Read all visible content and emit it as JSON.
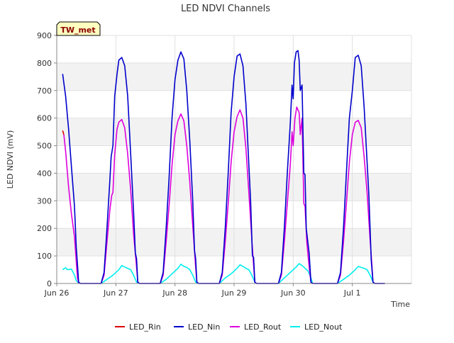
{
  "chart_data": {
    "type": "line",
    "title": "LED NDVI Channels",
    "xlabel": "Time",
    "ylabel": "LED NDVI (mV)",
    "site_tag": "TW_met",
    "ylim": [
      0,
      900
    ],
    "yticks": [
      0,
      100,
      200,
      300,
      400,
      500,
      600,
      700,
      800,
      900
    ],
    "xlim": [
      0,
      6
    ],
    "xticks": [
      {
        "value": 0,
        "label": "Jun 26"
      },
      {
        "value": 1,
        "label": "Jun 27"
      },
      {
        "value": 2,
        "label": "Jun 28"
      },
      {
        "value": 3,
        "label": "Jun 29"
      },
      {
        "value": 4,
        "label": "Jun 30"
      },
      {
        "value": 5,
        "label": "Jul 1"
      }
    ],
    "grid": true,
    "legend_position": "bottom",
    "series": [
      {
        "name": "LED_Rin",
        "color": "#dd0000",
        "points": [
          [
            0.1,
            555
          ],
          [
            0.12,
            540
          ]
        ]
      },
      {
        "name": "LED_Nin",
        "color": "#0000cc",
        "points": [
          [
            0.1,
            760
          ],
          [
            0.15,
            680
          ],
          [
            0.2,
            560
          ],
          [
            0.25,
            420
          ],
          [
            0.3,
            280
          ],
          [
            0.33,
            130
          ],
          [
            0.35,
            70
          ],
          [
            0.37,
            5
          ],
          [
            0.4,
            0
          ],
          [
            0.75,
            0
          ],
          [
            0.8,
            40
          ],
          [
            0.85,
            200
          ],
          [
            0.9,
            380
          ],
          [
            0.92,
            460
          ],
          [
            0.95,
            500
          ],
          [
            0.98,
            680
          ],
          [
            1.02,
            760
          ],
          [
            1.05,
            810
          ],
          [
            1.1,
            820
          ],
          [
            1.15,
            790
          ],
          [
            1.2,
            680
          ],
          [
            1.25,
            470
          ],
          [
            1.3,
            260
          ],
          [
            1.33,
            110
          ],
          [
            1.35,
            90
          ],
          [
            1.37,
            5
          ],
          [
            1.4,
            0
          ],
          [
            1.75,
            0
          ],
          [
            1.8,
            40
          ],
          [
            1.85,
            200
          ],
          [
            1.9,
            380
          ],
          [
            1.95,
            600
          ],
          [
            2.0,
            740
          ],
          [
            2.05,
            810
          ],
          [
            2.1,
            840
          ],
          [
            2.15,
            815
          ],
          [
            2.2,
            700
          ],
          [
            2.25,
            520
          ],
          [
            2.3,
            300
          ],
          [
            2.33,
            120
          ],
          [
            2.35,
            90
          ],
          [
            2.37,
            5
          ],
          [
            2.4,
            0
          ],
          [
            2.75,
            0
          ],
          [
            2.8,
            40
          ],
          [
            2.85,
            200
          ],
          [
            2.9,
            400
          ],
          [
            2.95,
            620
          ],
          [
            3.0,
            750
          ],
          [
            3.05,
            825
          ],
          [
            3.1,
            833
          ],
          [
            3.15,
            790
          ],
          [
            3.2,
            650
          ],
          [
            3.25,
            430
          ],
          [
            3.28,
            300
          ],
          [
            3.31,
            100
          ],
          [
            3.33,
            95
          ],
          [
            3.35,
            5
          ],
          [
            3.38,
            0
          ],
          [
            3.75,
            0
          ],
          [
            3.8,
            40
          ],
          [
            3.85,
            200
          ],
          [
            3.9,
            400
          ],
          [
            3.95,
            580
          ],
          [
            3.98,
            720
          ],
          [
            4.0,
            670
          ],
          [
            4.02,
            800
          ],
          [
            4.05,
            840
          ],
          [
            4.08,
            845
          ],
          [
            4.1,
            810
          ],
          [
            4.12,
            700
          ],
          [
            4.15,
            720
          ],
          [
            4.18,
            400
          ],
          [
            4.2,
            395
          ],
          [
            4.22,
            200
          ],
          [
            4.27,
            110
          ],
          [
            4.3,
            5
          ],
          [
            4.33,
            0
          ],
          [
            4.75,
            0
          ],
          [
            4.8,
            40
          ],
          [
            4.85,
            200
          ],
          [
            4.9,
            400
          ],
          [
            4.95,
            600
          ],
          [
            5.0,
            700
          ],
          [
            5.05,
            820
          ],
          [
            5.1,
            828
          ],
          [
            5.15,
            790
          ],
          [
            5.2,
            640
          ],
          [
            5.25,
            440
          ],
          [
            5.28,
            320
          ],
          [
            5.3,
            200
          ],
          [
            5.32,
            85
          ],
          [
            5.35,
            5
          ],
          [
            5.38,
            0
          ],
          [
            5.55,
            0
          ]
        ]
      },
      {
        "name": "LED_Rout",
        "color": "#dd00dd",
        "points": [
          [
            0.12,
            540
          ],
          [
            0.15,
            480
          ],
          [
            0.2,
            350
          ],
          [
            0.25,
            250
          ],
          [
            0.3,
            170
          ],
          [
            0.33,
            80
          ],
          [
            0.35,
            20
          ],
          [
            0.37,
            2
          ],
          [
            0.4,
            0
          ],
          [
            0.75,
            0
          ],
          [
            0.8,
            30
          ],
          [
            0.85,
            150
          ],
          [
            0.9,
            270
          ],
          [
            0.93,
            320
          ],
          [
            0.95,
            330
          ],
          [
            0.98,
            470
          ],
          [
            1.02,
            560
          ],
          [
            1.05,
            585
          ],
          [
            1.1,
            595
          ],
          [
            1.15,
            565
          ],
          [
            1.2,
            470
          ],
          [
            1.25,
            340
          ],
          [
            1.3,
            180
          ],
          [
            1.35,
            60
          ],
          [
            1.37,
            5
          ],
          [
            1.4,
            0
          ],
          [
            1.75,
            0
          ],
          [
            1.8,
            30
          ],
          [
            1.85,
            150
          ],
          [
            1.9,
            280
          ],
          [
            1.95,
            430
          ],
          [
            2.0,
            540
          ],
          [
            2.05,
            590
          ],
          [
            2.1,
            615
          ],
          [
            2.15,
            590
          ],
          [
            2.2,
            500
          ],
          [
            2.25,
            370
          ],
          [
            2.3,
            210
          ],
          [
            2.35,
            60
          ],
          [
            2.37,
            5
          ],
          [
            2.4,
            0
          ],
          [
            2.75,
            0
          ],
          [
            2.8,
            30
          ],
          [
            2.85,
            150
          ],
          [
            2.9,
            290
          ],
          [
            2.95,
            440
          ],
          [
            3.0,
            550
          ],
          [
            3.05,
            605
          ],
          [
            3.1,
            630
          ],
          [
            3.15,
            600
          ],
          [
            3.2,
            490
          ],
          [
            3.25,
            330
          ],
          [
            3.3,
            160
          ],
          [
            3.33,
            65
          ],
          [
            3.35,
            5
          ],
          [
            3.38,
            0
          ],
          [
            3.75,
            0
          ],
          [
            3.8,
            30
          ],
          [
            3.85,
            150
          ],
          [
            3.9,
            290
          ],
          [
            3.95,
            430
          ],
          [
            3.98,
            550
          ],
          [
            4.0,
            500
          ],
          [
            4.03,
            600
          ],
          [
            4.06,
            640
          ],
          [
            4.1,
            620
          ],
          [
            4.12,
            540
          ],
          [
            4.15,
            600
          ],
          [
            4.18,
            290
          ],
          [
            4.2,
            280
          ],
          [
            4.23,
            150
          ],
          [
            4.27,
            60
          ],
          [
            4.3,
            5
          ],
          [
            4.33,
            0
          ],
          [
            4.75,
            0
          ],
          [
            4.8,
            30
          ],
          [
            4.85,
            150
          ],
          [
            4.9,
            290
          ],
          [
            4.95,
            440
          ],
          [
            5.0,
            540
          ],
          [
            5.05,
            585
          ],
          [
            5.1,
            592
          ],
          [
            5.15,
            565
          ],
          [
            5.2,
            460
          ],
          [
            5.25,
            330
          ],
          [
            5.3,
            160
          ],
          [
            5.33,
            70
          ],
          [
            5.35,
            5
          ],
          [
            5.38,
            0
          ],
          [
            5.55,
            0
          ]
        ]
      },
      {
        "name": "LED_Nout",
        "color": "#00eeee",
        "points": [
          [
            0.1,
            50
          ],
          [
            0.15,
            57
          ],
          [
            0.18,
            50
          ],
          [
            0.25,
            52
          ],
          [
            0.3,
            30
          ],
          [
            0.33,
            10
          ],
          [
            0.37,
            1
          ],
          [
            0.4,
            0
          ],
          [
            0.75,
            0
          ],
          [
            0.85,
            15
          ],
          [
            0.95,
            30
          ],
          [
            1.05,
            50
          ],
          [
            1.1,
            65
          ],
          [
            1.15,
            60
          ],
          [
            1.2,
            55
          ],
          [
            1.25,
            50
          ],
          [
            1.3,
            30
          ],
          [
            1.35,
            5
          ],
          [
            1.4,
            0
          ],
          [
            1.75,
            0
          ],
          [
            1.85,
            15
          ],
          [
            1.95,
            35
          ],
          [
            2.05,
            55
          ],
          [
            2.1,
            70
          ],
          [
            2.15,
            62
          ],
          [
            2.2,
            58
          ],
          [
            2.25,
            50
          ],
          [
            2.3,
            30
          ],
          [
            2.35,
            5
          ],
          [
            2.4,
            0
          ],
          [
            2.75,
            0
          ],
          [
            2.85,
            20
          ],
          [
            2.95,
            35
          ],
          [
            3.05,
            55
          ],
          [
            3.1,
            68
          ],
          [
            3.15,
            62
          ],
          [
            3.2,
            55
          ],
          [
            3.25,
            50
          ],
          [
            3.3,
            30
          ],
          [
            3.35,
            5
          ],
          [
            3.38,
            0
          ],
          [
            3.75,
            0
          ],
          [
            3.85,
            20
          ],
          [
            3.95,
            40
          ],
          [
            4.05,
            60
          ],
          [
            4.1,
            72
          ],
          [
            4.15,
            65
          ],
          [
            4.2,
            55
          ],
          [
            4.25,
            45
          ],
          [
            4.3,
            20
          ],
          [
            4.33,
            0
          ],
          [
            4.75,
            0
          ],
          [
            4.85,
            15
          ],
          [
            4.95,
            30
          ],
          [
            5.05,
            50
          ],
          [
            5.1,
            62
          ],
          [
            5.15,
            58
          ],
          [
            5.2,
            55
          ],
          [
            5.25,
            50
          ],
          [
            5.3,
            30
          ],
          [
            5.35,
            5
          ],
          [
            5.38,
            0
          ],
          [
            5.55,
            0
          ]
        ]
      }
    ]
  }
}
